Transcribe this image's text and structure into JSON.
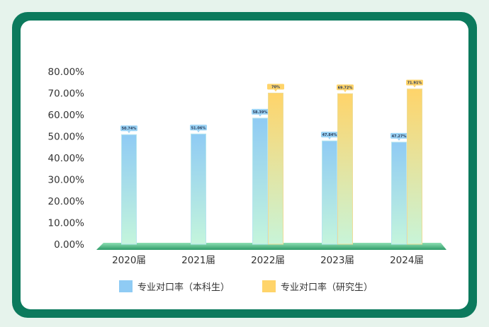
{
  "chart_data": {
    "type": "bar",
    "title": "",
    "xlabel": "",
    "ylabel": "",
    "categories": [
      "2020届",
      "2021届",
      "2022届",
      "2023届",
      "2024届"
    ],
    "y_ticks": [
      "0.00%",
      "10.00%",
      "20.00%",
      "30.00%",
      "40.00%",
      "50.00%",
      "60.00%",
      "70.00%",
      "80.00%"
    ],
    "ylim": [
      0,
      80
    ],
    "series": [
      {
        "name": "专业对口率（本科生）",
        "values": [
          50.74,
          51.06,
          58.39,
          47.84,
          47.27
        ],
        "labels": [
          "50.74%",
          "51.06%",
          "58.39%",
          "47.84%",
          "47.27%"
        ],
        "colors": {
          "top": "#8fcbf4",
          "bottom": "#c4f5dc",
          "label_bg": "#9bd3f5"
        }
      },
      {
        "name": "专业对口率（研究生）",
        "values": [
          null,
          null,
          70,
          69.72,
          71.91
        ],
        "labels": [
          "",
          "",
          "70%",
          "69.72%",
          "71.91%"
        ],
        "colors": {
          "top": "#ffd46a",
          "bottom": "#c8f4d8",
          "label_bg": "#ffd46a"
        }
      }
    ],
    "legend_position": "bottom",
    "grid": false,
    "base_color": "#2e9a68"
  },
  "colors": {
    "frame": "#0c7a5d",
    "page_bg": "#e6f3ec"
  }
}
